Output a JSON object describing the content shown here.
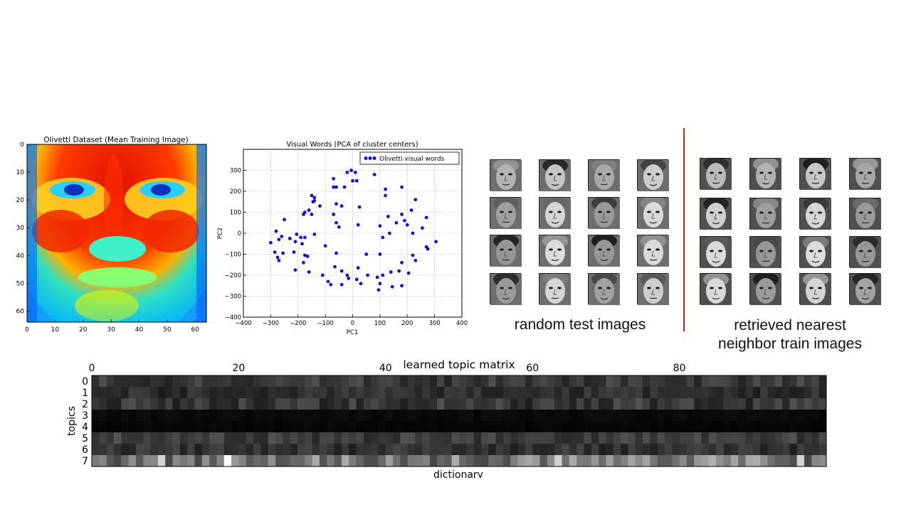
{
  "heatmap_panel": {
    "title": "Olivetti Dataset (Mean Training Image)",
    "x_ticks": [
      "0",
      "10",
      "20",
      "30",
      "40",
      "50",
      "60"
    ],
    "y_ticks": [
      "0",
      "10",
      "20",
      "30",
      "40",
      "50",
      "60"
    ]
  },
  "pca_panel": {
    "title": "Visual Words (PCA of cluster centers)",
    "xlabel": "PC1",
    "ylabel": "PC2",
    "legend": "Olivetti visual words",
    "x_ticks": [
      "−400",
      "−300",
      "−200",
      "−100",
      "0",
      "100",
      "200",
      "300",
      "400"
    ],
    "y_ticks": [
      "300",
      "200",
      "100",
      "0",
      "−100",
      "−200",
      "−300",
      "−400"
    ]
  },
  "test_images": {
    "caption": "random test images"
  },
  "retrieved_images": {
    "caption_line1": "retrieved nearest",
    "caption_line2": "neighbor train images"
  },
  "topic_panel": {
    "title": "learned topic matrix",
    "xlabel": "dictionary",
    "ylabel": "topics",
    "x_ticks": [
      "0",
      "20",
      "40",
      "60",
      "80"
    ],
    "y_ticks": [
      "0",
      "1",
      "2",
      "3",
      "4",
      "5",
      "6",
      "7"
    ]
  },
  "colors": {
    "scatter": "#1010e0",
    "divider": "#d62020",
    "grid": "#999999"
  },
  "chart_data": [
    {
      "type": "heatmap",
      "title": "Olivetti Dataset (Mean Training Image)",
      "xlim": [
        0,
        64
      ],
      "ylim": [
        0,
        64
      ],
      "colormap": "jet"
    },
    {
      "type": "scatter",
      "title": "Visual Words (PCA of cluster centers)",
      "xlabel": "PC1",
      "ylabel": "PC2",
      "xlim": [
        -400,
        400
      ],
      "ylim": [
        -400,
        400
      ],
      "grid": true,
      "legend_position": "top-right",
      "series": [
        {
          "name": "Olivetti visual words",
          "points": [
            [
              -5,
              300
            ],
            [
              -20,
              290
            ],
            [
              10,
              290
            ],
            [
              -70,
              260
            ],
            [
              0,
              250
            ],
            [
              15,
              250
            ],
            [
              80,
              280
            ],
            [
              -70,
              220
            ],
            [
              -60,
              220
            ],
            [
              -30,
              220
            ],
            [
              120,
              210
            ],
            [
              180,
              220
            ],
            [
              -150,
              180
            ],
            [
              -140,
              170
            ],
            [
              -140,
              155
            ],
            [
              -145,
              150
            ],
            [
              120,
              180
            ],
            [
              230,
              160
            ],
            [
              -175,
              100
            ],
            [
              -180,
              90
            ],
            [
              -160,
              110
            ],
            [
              -150,
              90
            ],
            [
              -120,
              130
            ],
            [
              -60,
              140
            ],
            [
              -40,
              130
            ],
            [
              25,
              125
            ],
            [
              215,
              110
            ],
            [
              -70,
              90
            ],
            [
              130,
              80
            ],
            [
              180,
              90
            ],
            [
              190,
              60
            ],
            [
              270,
              75
            ],
            [
              -250,
              65
            ],
            [
              -60,
              50
            ],
            [
              -50,
              30
            ],
            [
              20,
              40
            ],
            [
              160,
              50
            ],
            [
              200,
              40
            ],
            [
              100,
              35
            ],
            [
              255,
              25
            ],
            [
              -280,
              10
            ],
            [
              -260,
              -15
            ],
            [
              -230,
              -25
            ],
            [
              -205,
              -5
            ],
            [
              -190,
              -20
            ],
            [
              -175,
              -20
            ],
            [
              -140,
              -5
            ],
            [
              135,
              0
            ],
            [
              220,
              0
            ],
            [
              110,
              -20
            ],
            [
              -300,
              -45
            ],
            [
              -270,
              -30
            ],
            [
              -210,
              -40
            ],
            [
              -185,
              -50
            ],
            [
              -100,
              -60
            ],
            [
              270,
              -65
            ],
            [
              275,
              -75
            ],
            [
              305,
              -40
            ],
            [
              -285,
              -90
            ],
            [
              -255,
              -95
            ],
            [
              -215,
              -90
            ],
            [
              -175,
              -105
            ],
            [
              -165,
              -110
            ],
            [
              -60,
              -95
            ],
            [
              100,
              -100
            ],
            [
              220,
              -105
            ],
            [
              -275,
              -115
            ],
            [
              -270,
              -130
            ],
            [
              -180,
              -140
            ],
            [
              50,
              -100
            ],
            [
              180,
              -140
            ],
            [
              230,
              -130
            ],
            [
              -210,
              -175
            ],
            [
              -65,
              -160
            ],
            [
              20,
              -165
            ],
            [
              -160,
              -185
            ],
            [
              -110,
              -200
            ],
            [
              -40,
              -180
            ],
            [
              -20,
              -200
            ],
            [
              55,
              -200
            ],
            [
              140,
              -185
            ],
            [
              170,
              -180
            ],
            [
              205,
              -190
            ],
            [
              -90,
              -230
            ],
            [
              -80,
              -245
            ],
            [
              -40,
              -245
            ],
            [
              -15,
              -215
            ],
            [
              15,
              -220
            ],
            [
              30,
              -240
            ],
            [
              100,
              -240
            ],
            [
              95,
              -270
            ],
            [
              145,
              -255
            ],
            [
              180,
              -250
            ],
            [
              90,
              -210
            ],
            [
              110,
              -200
            ]
          ]
        }
      ]
    },
    {
      "type": "heatmap",
      "title": "learned topic matrix",
      "xlabel": "dictionary",
      "ylabel": "topics",
      "rows": 8,
      "columns": 100,
      "colormap": "gray"
    }
  ]
}
